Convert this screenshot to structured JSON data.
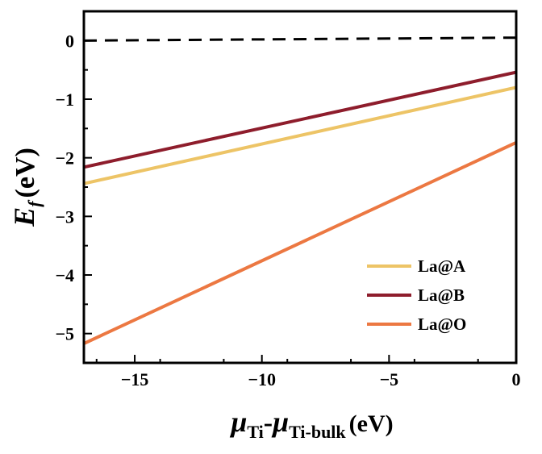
{
  "chart_data": {
    "type": "line",
    "xlim": [
      -17,
      0
    ],
    "ylim": [
      -5.5,
      0.5
    ],
    "xticks": [
      -15,
      -10,
      -5,
      0
    ],
    "xtick_labels": [
      "−15",
      "−10",
      "−5",
      "0"
    ],
    "yticks": [
      0,
      -1,
      -2,
      -3,
      -4,
      -5
    ],
    "ytick_labels": [
      "0",
      "−1",
      "−2",
      "−3",
      "−4",
      "−5"
    ],
    "xlabel": {
      "mu1": "μ",
      "sub1": "Ti",
      "dash": "-",
      "mu2": "μ",
      "sub2": "Ti-bulk",
      "unit": "(eV)"
    },
    "ylabel": {
      "sym": "E",
      "sub": "f",
      "unit": "(eV)"
    },
    "reference_line": {
      "y": [
        0,
        0.05
      ],
      "style": "dashed",
      "color": "#000000"
    },
    "series": [
      {
        "name": "La@A",
        "color": "#EDC466",
        "x": [
          -17,
          0
        ],
        "y": [
          -2.44,
          -0.8
        ]
      },
      {
        "name": "La@B",
        "color": "#8E1D2C",
        "x": [
          -17,
          0
        ],
        "y": [
          -2.16,
          -0.54
        ]
      },
      {
        "name": "La@O",
        "color": "#EC7842",
        "x": [
          -17,
          0
        ],
        "y": [
          -5.17,
          -1.74
        ]
      }
    ],
    "legend": {
      "position": "bottom-right"
    },
    "grid": false
  }
}
